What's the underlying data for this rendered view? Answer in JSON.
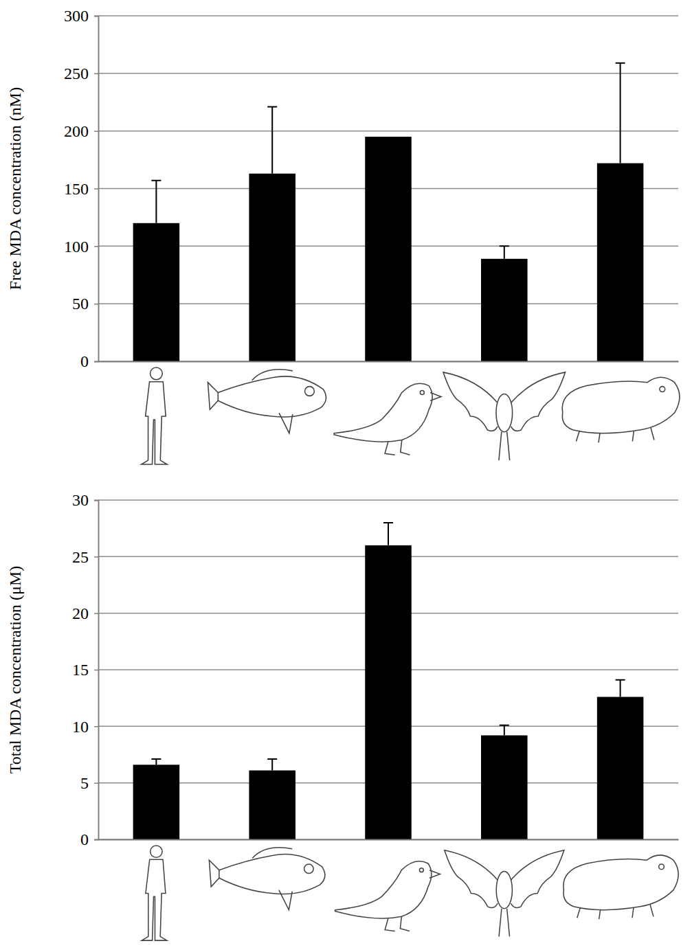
{
  "chart_data": [
    {
      "type": "bar",
      "y_label": "Free MDA concentration (nM)",
      "categories": [
        null,
        null,
        null,
        null,
        null
      ],
      "values": [
        120,
        163,
        195,
        89,
        172
      ],
      "errors": [
        37,
        58,
        null,
        11,
        87
      ],
      "color": "#000000",
      "ylim": [
        0,
        300
      ],
      "yticks": [
        0,
        50,
        100,
        150,
        200,
        250,
        300
      ],
      "grid": true
    },
    {
      "type": "bar",
      "y_label": "Total MDA concentration (μM)",
      "categories": [
        null,
        null,
        null,
        null,
        null
      ],
      "values": [
        6.6,
        6.1,
        26,
        9.2,
        12.6
      ],
      "errors": [
        0.5,
        1.0,
        2,
        0.9,
        1.5
      ],
      "color": "#000000",
      "ylim": [
        0,
        30
      ],
      "yticks": [
        0,
        5,
        10,
        15,
        20,
        25,
        30
      ],
      "grid": true
    }
  ]
}
